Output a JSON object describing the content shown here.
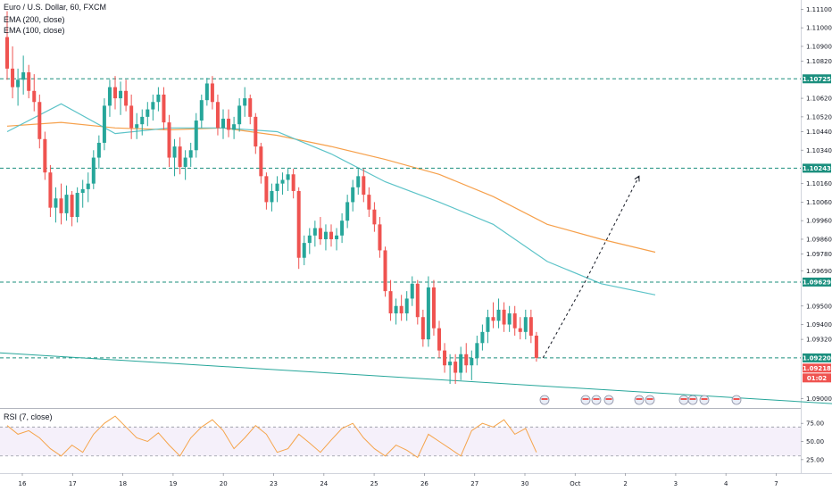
{
  "legend": {
    "symbol": "Euro / U.S. Dollar, 60, FXCM",
    "ema200": "EMA (200, close)",
    "ema100": "EMA (100, close)",
    "rsi": "RSI (7, close)"
  },
  "colors": {
    "bull": "#26a69a",
    "bear": "#ef5350",
    "ema200": "#f6a04b",
    "ema100": "#5cc3c8",
    "level": "#1b8f7e",
    "trend": "#26a69a",
    "rsi": "#f5a44a",
    "price_tag": "#ef5350"
  },
  "chart_data": [
    {
      "type": "candlestick",
      "title": "Euro / U.S. Dollar, 60, FXCM",
      "x_tick_labels": [
        "16",
        "17",
        "18",
        "19",
        "20",
        "23",
        "24",
        "25",
        "26",
        "27",
        "30",
        "Oct",
        "2",
        "3",
        "4",
        "7"
      ],
      "y_tick_labels": [
        "1.11100",
        "1.11000",
        "1.10900",
        "1.10820",
        "1.10725",
        "1.10620",
        "1.10520",
        "1.10440",
        "1.10340",
        "1.10243",
        "1.10160",
        "1.10060",
        "1.09960",
        "1.09860",
        "1.09780",
        "1.09690",
        "1.09629",
        "1.09500",
        "1.09400",
        "1.09320",
        "1.09220",
        "1.09218",
        "1.09000"
      ],
      "ylim": [
        1.0895,
        1.1115
      ],
      "horizontal_levels": [
        1.10725,
        1.10243,
        1.09629,
        1.0922
      ],
      "last_price": "1.09218",
      "countdown": "01:02",
      "series": [
        {
          "name": "EMA (200, close)",
          "x": [
            0,
            5,
            10,
            15,
            20,
            25,
            30,
            35,
            40,
            45,
            50,
            55,
            60
          ],
          "values": [
            1.1047,
            1.1049,
            1.1046,
            1.1045,
            1.1046,
            1.1042,
            1.1036,
            1.1029,
            1.1021,
            1.1009,
            1.0994,
            1.0986,
            1.0979
          ]
        },
        {
          "name": "EMA (100, close)",
          "x": [
            0,
            5,
            10,
            15,
            20,
            25,
            30,
            35,
            40,
            45,
            50,
            55,
            60
          ],
          "values": [
            1.1044,
            1.1059,
            1.1043,
            1.1046,
            1.1046,
            1.1044,
            1.1032,
            1.1017,
            1.1006,
            1.0994,
            1.0974,
            1.0962,
            1.0956
          ]
        }
      ],
      "ohlc": [
        {
          "x": 0.0,
          "o": 1.1095,
          "h": 1.1109,
          "l": 1.1072,
          "c": 1.1078
        },
        {
          "x": 0.5,
          "o": 1.1078,
          "h": 1.109,
          "l": 1.1062,
          "c": 1.1068
        },
        {
          "x": 1.0,
          "o": 1.1068,
          "h": 1.1078,
          "l": 1.1058,
          "c": 1.1072
        },
        {
          "x": 1.5,
          "o": 1.1072,
          "h": 1.1085,
          "l": 1.1064,
          "c": 1.1076
        },
        {
          "x": 2.0,
          "o": 1.1076,
          "h": 1.108,
          "l": 1.1062,
          "c": 1.1066
        },
        {
          "x": 2.5,
          "o": 1.1066,
          "h": 1.1075,
          "l": 1.1055,
          "c": 1.106
        },
        {
          "x": 3.0,
          "o": 1.106,
          "h": 1.1064,
          "l": 1.1035,
          "c": 1.104
        },
        {
          "x": 3.5,
          "o": 1.104,
          "h": 1.1044,
          "l": 1.1018,
          "c": 1.1022
        },
        {
          "x": 4.0,
          "o": 1.1022,
          "h": 1.1026,
          "l": 1.0998,
          "c": 1.1003
        },
        {
          "x": 4.5,
          "o": 1.1003,
          "h": 1.1014,
          "l": 1.0995,
          "c": 1.1008
        },
        {
          "x": 5.0,
          "o": 1.1008,
          "h": 1.1016,
          "l": 1.0994,
          "c": 1.1
        },
        {
          "x": 5.5,
          "o": 1.1,
          "h": 1.1015,
          "l": 1.0996,
          "c": 1.101
        },
        {
          "x": 6.0,
          "o": 1.101,
          "h": 1.1012,
          "l": 1.0993,
          "c": 1.0998
        },
        {
          "x": 6.5,
          "o": 1.0998,
          "h": 1.1014,
          "l": 1.0995,
          "c": 1.1011
        },
        {
          "x": 7.0,
          "o": 1.1011,
          "h": 1.1018,
          "l": 1.1003,
          "c": 1.1013
        },
        {
          "x": 7.5,
          "o": 1.1013,
          "h": 1.1022,
          "l": 1.1006,
          "c": 1.1016
        },
        {
          "x": 8.0,
          "o": 1.1016,
          "h": 1.1034,
          "l": 1.1013,
          "c": 1.103
        },
        {
          "x": 8.5,
          "o": 1.103,
          "h": 1.1042,
          "l": 1.1024,
          "c": 1.1038
        },
        {
          "x": 9.0,
          "o": 1.1038,
          "h": 1.1062,
          "l": 1.1034,
          "c": 1.1058
        },
        {
          "x": 9.5,
          "o": 1.1058,
          "h": 1.1072,
          "l": 1.1052,
          "c": 1.1068
        },
        {
          "x": 10.0,
          "o": 1.1068,
          "h": 1.1074,
          "l": 1.1056,
          "c": 1.1062
        },
        {
          "x": 10.5,
          "o": 1.1062,
          "h": 1.1071,
          "l": 1.1053,
          "c": 1.1066
        },
        {
          "x": 11.0,
          "o": 1.1066,
          "h": 1.1072,
          "l": 1.1055,
          "c": 1.1058
        },
        {
          "x": 11.5,
          "o": 1.1058,
          "h": 1.1064,
          "l": 1.104,
          "c": 1.1046
        },
        {
          "x": 12.0,
          "o": 1.1046,
          "h": 1.1054,
          "l": 1.104,
          "c": 1.1048
        },
        {
          "x": 12.5,
          "o": 1.1048,
          "h": 1.1056,
          "l": 1.1042,
          "c": 1.1052
        },
        {
          "x": 13.0,
          "o": 1.1052,
          "h": 1.106,
          "l": 1.1047,
          "c": 1.1056
        },
        {
          "x": 13.5,
          "o": 1.1056,
          "h": 1.1064,
          "l": 1.105,
          "c": 1.106
        },
        {
          "x": 14.0,
          "o": 1.106,
          "h": 1.1068,
          "l": 1.1055,
          "c": 1.1064
        },
        {
          "x": 14.5,
          "o": 1.1064,
          "h": 1.1068,
          "l": 1.1045,
          "c": 1.1049
        },
        {
          "x": 15.0,
          "o": 1.1049,
          "h": 1.1053,
          "l": 1.1025,
          "c": 1.103
        },
        {
          "x": 15.5,
          "o": 1.103,
          "h": 1.104,
          "l": 1.102,
          "c": 1.1036
        },
        {
          "x": 16.0,
          "o": 1.1036,
          "h": 1.1041,
          "l": 1.1021,
          "c": 1.1025
        },
        {
          "x": 16.5,
          "o": 1.1025,
          "h": 1.1034,
          "l": 1.1018,
          "c": 1.103
        },
        {
          "x": 17.0,
          "o": 1.103,
          "h": 1.1038,
          "l": 1.1025,
          "c": 1.1034
        },
        {
          "x": 17.5,
          "o": 1.1034,
          "h": 1.1054,
          "l": 1.103,
          "c": 1.105
        },
        {
          "x": 18.0,
          "o": 1.105,
          "h": 1.1064,
          "l": 1.1046,
          "c": 1.1061
        },
        {
          "x": 18.5,
          "o": 1.1061,
          "h": 1.1073,
          "l": 1.1058,
          "c": 1.107
        },
        {
          "x": 19.0,
          "o": 1.107,
          "h": 1.1074,
          "l": 1.1056,
          "c": 1.106
        },
        {
          "x": 19.5,
          "o": 1.106,
          "h": 1.1064,
          "l": 1.1042,
          "c": 1.1046
        },
        {
          "x": 20.0,
          "o": 1.1046,
          "h": 1.1056,
          "l": 1.104,
          "c": 1.1051
        },
        {
          "x": 20.5,
          "o": 1.1051,
          "h": 1.1056,
          "l": 1.1041,
          "c": 1.1045
        },
        {
          "x": 21.0,
          "o": 1.1045,
          "h": 1.1052,
          "l": 1.104,
          "c": 1.1048
        },
        {
          "x": 21.5,
          "o": 1.1048,
          "h": 1.1062,
          "l": 1.1044,
          "c": 1.1058
        },
        {
          "x": 22.0,
          "o": 1.1058,
          "h": 1.1068,
          "l": 1.1052,
          "c": 1.1062
        },
        {
          "x": 22.5,
          "o": 1.1062,
          "h": 1.1064,
          "l": 1.1048,
          "c": 1.1052
        },
        {
          "x": 23.0,
          "o": 1.1052,
          "h": 1.1054,
          "l": 1.1032,
          "c": 1.1036
        },
        {
          "x": 23.5,
          "o": 1.1036,
          "h": 1.1038,
          "l": 1.1016,
          "c": 1.102
        },
        {
          "x": 24.0,
          "o": 1.102,
          "h": 1.1022,
          "l": 1.1002,
          "c": 1.1006
        },
        {
          "x": 24.5,
          "o": 1.1006,
          "h": 1.1016,
          "l": 1.1001,
          "c": 1.1012
        },
        {
          "x": 25.0,
          "o": 1.1012,
          "h": 1.102,
          "l": 1.1006,
          "c": 1.1016
        },
        {
          "x": 25.5,
          "o": 1.1016,
          "h": 1.1022,
          "l": 1.101,
          "c": 1.1018
        },
        {
          "x": 26.0,
          "o": 1.1018,
          "h": 1.1024,
          "l": 1.1012,
          "c": 1.1021
        },
        {
          "x": 26.5,
          "o": 1.1021,
          "h": 1.1024,
          "l": 1.1008,
          "c": 1.1012
        },
        {
          "x": 27.0,
          "o": 1.1012,
          "h": 1.1014,
          "l": 1.097,
          "c": 1.0976
        },
        {
          "x": 27.5,
          "o": 1.0976,
          "h": 1.0988,
          "l": 1.0972,
          "c": 1.0984
        },
        {
          "x": 28.0,
          "o": 1.0984,
          "h": 1.0992,
          "l": 1.0978,
          "c": 1.0988
        },
        {
          "x": 28.5,
          "o": 1.0988,
          "h": 1.0996,
          "l": 1.0982,
          "c": 1.0992
        },
        {
          "x": 29.0,
          "o": 1.0992,
          "h": 1.0998,
          "l": 1.0983,
          "c": 1.0986
        },
        {
          "x": 29.5,
          "o": 1.0986,
          "h": 1.0994,
          "l": 1.098,
          "c": 1.099
        },
        {
          "x": 30.0,
          "o": 1.099,
          "h": 1.0994,
          "l": 1.0982,
          "c": 1.0986
        },
        {
          "x": 30.5,
          "o": 1.0986,
          "h": 1.0992,
          "l": 1.098,
          "c": 1.0988
        },
        {
          "x": 31.0,
          "o": 1.0988,
          "h": 1.1,
          "l": 1.0984,
          "c": 1.0996
        },
        {
          "x": 31.5,
          "o": 1.0996,
          "h": 1.101,
          "l": 1.0992,
          "c": 1.1006
        },
        {
          "x": 32.0,
          "o": 1.1006,
          "h": 1.1018,
          "l": 1.1001,
          "c": 1.1014
        },
        {
          "x": 32.5,
          "o": 1.1014,
          "h": 1.1024,
          "l": 1.101,
          "c": 1.102
        },
        {
          "x": 33.0,
          "o": 1.102,
          "h": 1.1024,
          "l": 1.1006,
          "c": 1.101
        },
        {
          "x": 33.5,
          "o": 1.101,
          "h": 1.1014,
          "l": 1.0998,
          "c": 1.1002
        },
        {
          "x": 34.0,
          "o": 1.1002,
          "h": 1.1006,
          "l": 1.099,
          "c": 1.0994
        },
        {
          "x": 34.5,
          "o": 1.0994,
          "h": 1.0998,
          "l": 1.0976,
          "c": 1.098
        },
        {
          "x": 35.0,
          "o": 1.098,
          "h": 1.0982,
          "l": 1.0955,
          "c": 1.0958
        },
        {
          "x": 35.5,
          "o": 1.0958,
          "h": 1.0964,
          "l": 1.0942,
          "c": 1.0946
        },
        {
          "x": 36.0,
          "o": 1.0946,
          "h": 1.0954,
          "l": 1.094,
          "c": 1.095
        },
        {
          "x": 36.5,
          "o": 1.095,
          "h": 1.0956,
          "l": 1.0942,
          "c": 1.0946
        },
        {
          "x": 37.0,
          "o": 1.0946,
          "h": 1.0958,
          "l": 1.0942,
          "c": 1.0954
        },
        {
          "x": 37.5,
          "o": 1.0954,
          "h": 1.0966,
          "l": 1.095,
          "c": 1.0962
        },
        {
          "x": 38.0,
          "o": 1.0962,
          "h": 1.0964,
          "l": 1.094,
          "c": 1.0944
        },
        {
          "x": 38.5,
          "o": 1.0944,
          "h": 1.0948,
          "l": 1.0928,
          "c": 1.0932
        },
        {
          "x": 39.0,
          "o": 1.0932,
          "h": 1.0966,
          "l": 1.0928,
          "c": 1.096
        },
        {
          "x": 39.5,
          "o": 1.096,
          "h": 1.0964,
          "l": 1.0934,
          "c": 1.0938
        },
        {
          "x": 40.0,
          "o": 1.0938,
          "h": 1.0942,
          "l": 1.0922,
          "c": 1.0926
        },
        {
          "x": 40.5,
          "o": 1.0926,
          "h": 1.093,
          "l": 1.0914,
          "c": 1.0918
        },
        {
          "x": 41.0,
          "o": 1.0918,
          "h": 1.0924,
          "l": 1.0908,
          "c": 1.092
        },
        {
          "x": 41.5,
          "o": 1.092,
          "h": 1.0924,
          "l": 1.0908,
          "c": 1.0914
        },
        {
          "x": 42.0,
          "o": 1.0914,
          "h": 1.0928,
          "l": 1.091,
          "c": 1.0924
        },
        {
          "x": 42.5,
          "o": 1.0924,
          "h": 1.093,
          "l": 1.0914,
          "c": 1.0918
        },
        {
          "x": 43.0,
          "o": 1.0918,
          "h": 1.0926,
          "l": 1.091,
          "c": 1.0922
        },
        {
          "x": 43.5,
          "o": 1.0922,
          "h": 1.0934,
          "l": 1.0918,
          "c": 1.093
        },
        {
          "x": 44.0,
          "o": 1.093,
          "h": 1.094,
          "l": 1.0926,
          "c": 1.0936
        },
        {
          "x": 44.5,
          "o": 1.0936,
          "h": 1.0948,
          "l": 1.093,
          "c": 1.0944
        },
        {
          "x": 45.0,
          "o": 1.0944,
          "h": 1.0952,
          "l": 1.0938,
          "c": 1.0942
        },
        {
          "x": 45.5,
          "o": 1.0942,
          "h": 1.0954,
          "l": 1.0938,
          "c": 1.0948
        },
        {
          "x": 46.0,
          "o": 1.0948,
          "h": 1.0952,
          "l": 1.0936,
          "c": 1.094
        },
        {
          "x": 46.5,
          "o": 1.094,
          "h": 1.095,
          "l": 1.0936,
          "c": 1.0946
        },
        {
          "x": 47.0,
          "o": 1.0946,
          "h": 1.095,
          "l": 1.0934,
          "c": 1.0938
        },
        {
          "x": 47.5,
          "o": 1.0938,
          "h": 1.0944,
          "l": 1.0932,
          "c": 1.0936
        },
        {
          "x": 48.0,
          "o": 1.0936,
          "h": 1.0948,
          "l": 1.0932,
          "c": 1.0944
        },
        {
          "x": 48.5,
          "o": 1.0944,
          "h": 1.0948,
          "l": 1.093,
          "c": 1.0934
        },
        {
          "x": 49.0,
          "o": 1.0934,
          "h": 1.0936,
          "l": 1.092,
          "c": 1.0922
        }
      ],
      "forecast_path": [
        [
          49.6,
          1.0922
        ],
        [
          53.5,
          1.0963
        ],
        [
          58.5,
          1.102
        ]
      ],
      "trendline": {
        "start": [
          -1.5,
          1.0925
        ],
        "end": [
          83,
          1.0895
        ]
      }
    },
    {
      "type": "line",
      "title": "RSI (7, close)",
      "y_tick_labels": [
        "75.00",
        "50.00",
        "25.00"
      ],
      "ylim": [
        10,
        95
      ],
      "bands": [
        70,
        30
      ],
      "series": [
        {
          "name": "RSI (7, close)",
          "x": [
            0,
            1,
            2,
            3,
            4,
            5,
            6,
            7,
            8,
            9,
            10,
            11,
            12,
            13,
            14,
            15,
            16,
            17,
            18,
            19,
            20,
            21,
            22,
            23,
            24,
            25,
            26,
            27,
            28,
            29,
            30,
            31,
            32,
            33,
            34,
            35,
            36,
            37,
            38,
            39,
            40,
            41,
            42,
            43,
            44,
            45,
            46,
            47,
            48,
            49
          ],
          "values": [
            72,
            60,
            65,
            55,
            40,
            30,
            45,
            35,
            60,
            75,
            85,
            70,
            55,
            50,
            62,
            45,
            30,
            55,
            70,
            80,
            65,
            40,
            55,
            72,
            60,
            35,
            40,
            60,
            48,
            35,
            52,
            68,
            75,
            55,
            40,
            30,
            45,
            38,
            28,
            60,
            50,
            40,
            30,
            65,
            75,
            70,
            80,
            60,
            68,
            35
          ]
        }
      ]
    }
  ]
}
